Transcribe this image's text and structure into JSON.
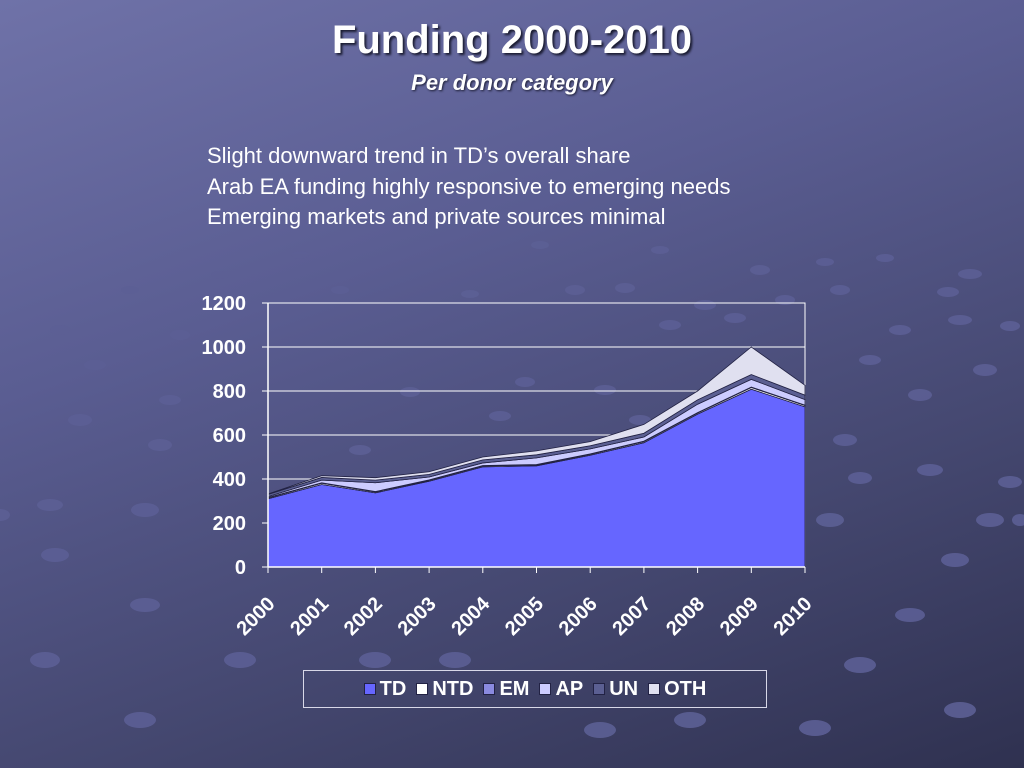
{
  "slide": {
    "title": "Funding 2000-2010",
    "subtitle": "Per donor category",
    "bullets": [
      "Slight downward trend in TD’s overall share",
      "Arab EA funding highly responsive to emerging needs",
      "Emerging markets and private sources minimal"
    ]
  },
  "colors": {
    "TD": "#6666ff",
    "NTD": "#ffffff",
    "EM": "#8a8adf",
    "AP": "#ccccff",
    "UN": "#5b5f92",
    "OTH": "#e0e0f0"
  },
  "chart_data": {
    "type": "area",
    "stacked": true,
    "categories": [
      "2000",
      "2001",
      "2002",
      "2003",
      "2004",
      "2005",
      "2006",
      "2007",
      "2008",
      "2009",
      "2010"
    ],
    "series": [
      {
        "name": "TD",
        "values": [
          310,
          375,
          337,
          390,
          455,
          460,
          508,
          565,
          695,
          808,
          728
        ]
      },
      {
        "name": "NTD",
        "values": [
          4,
          6,
          4,
          4,
          4,
          4,
          4,
          5,
          5,
          8,
          6
        ]
      },
      {
        "name": "EM",
        "values": [
          2,
          2,
          2,
          2,
          2,
          2,
          2,
          2,
          2,
          2,
          2
        ]
      },
      {
        "name": "AP",
        "values": [
          4,
          12,
          40,
          13,
          12,
          30,
          23,
          19,
          38,
          35,
          25
        ]
      },
      {
        "name": "UN",
        "values": [
          10,
          12,
          12,
          12,
          14,
          14,
          14,
          17,
          20,
          22,
          20
        ]
      },
      {
        "name": "OTH",
        "values": [
          2,
          8,
          11,
          12,
          13,
          18,
          19,
          40,
          40,
          125,
          45
        ]
      }
    ],
    "ylim": [
      0,
      1200
    ],
    "yticks": [
      0,
      200,
      400,
      600,
      800,
      1000,
      1200
    ],
    "grid": true,
    "legend": "bottom"
  }
}
